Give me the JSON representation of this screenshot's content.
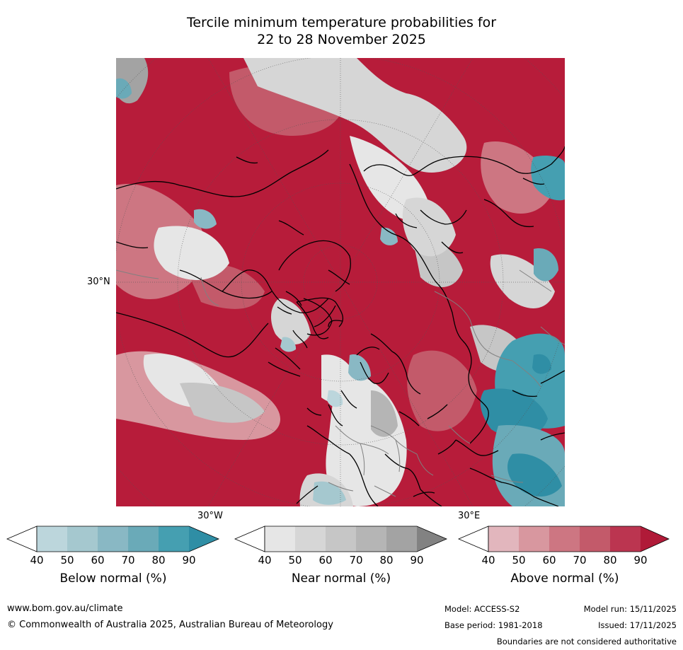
{
  "title_line1": "Tercile minimum temperature probabilities for",
  "title_line2": "22 to 28 November 2025",
  "map": {
    "lat_label": "30°N",
    "lon_label_west": "30°W",
    "lon_label_east": "30°E",
    "colors": {
      "above_dominant": "#b71c3a",
      "near": "#d0d0d0",
      "below": "#2f93a8"
    }
  },
  "colorbars": [
    {
      "title": "Below normal (%)",
      "ticks": [
        "40",
        "50",
        "60",
        "70",
        "80",
        "90"
      ],
      "colors": [
        "#bcd6dc",
        "#a5c8cf",
        "#89b8c4",
        "#6aaab8",
        "#459fb1",
        "#2f8ea5"
      ]
    },
    {
      "title": "Near normal (%)",
      "ticks": [
        "40",
        "50",
        "60",
        "70",
        "80",
        "90"
      ],
      "colors": [
        "#e6e6e6",
        "#d6d6d6",
        "#c6c6c6",
        "#b5b5b5",
        "#a3a3a3",
        "#828282"
      ]
    },
    {
      "title": "Above normal (%)",
      "ticks": [
        "40",
        "50",
        "60",
        "70",
        "80",
        "90"
      ],
      "colors": [
        "#e2b6bd",
        "#d8979f",
        "#cd7682",
        "#c35a6a",
        "#bb3550",
        "#b01a38"
      ]
    }
  ],
  "footer": {
    "website": "www.bom.gov.au/climate",
    "copyright": "© Commonwealth of Australia 2025, Australian Bureau of Meteorology",
    "model": "Model: ACCESS-S2",
    "model_run": "Model run: 15/11/2025",
    "base_period": "Base period: 1981-2018",
    "issued": "Issued: 17/11/2025",
    "disclaimer": "Boundaries are not considered authoritative"
  }
}
